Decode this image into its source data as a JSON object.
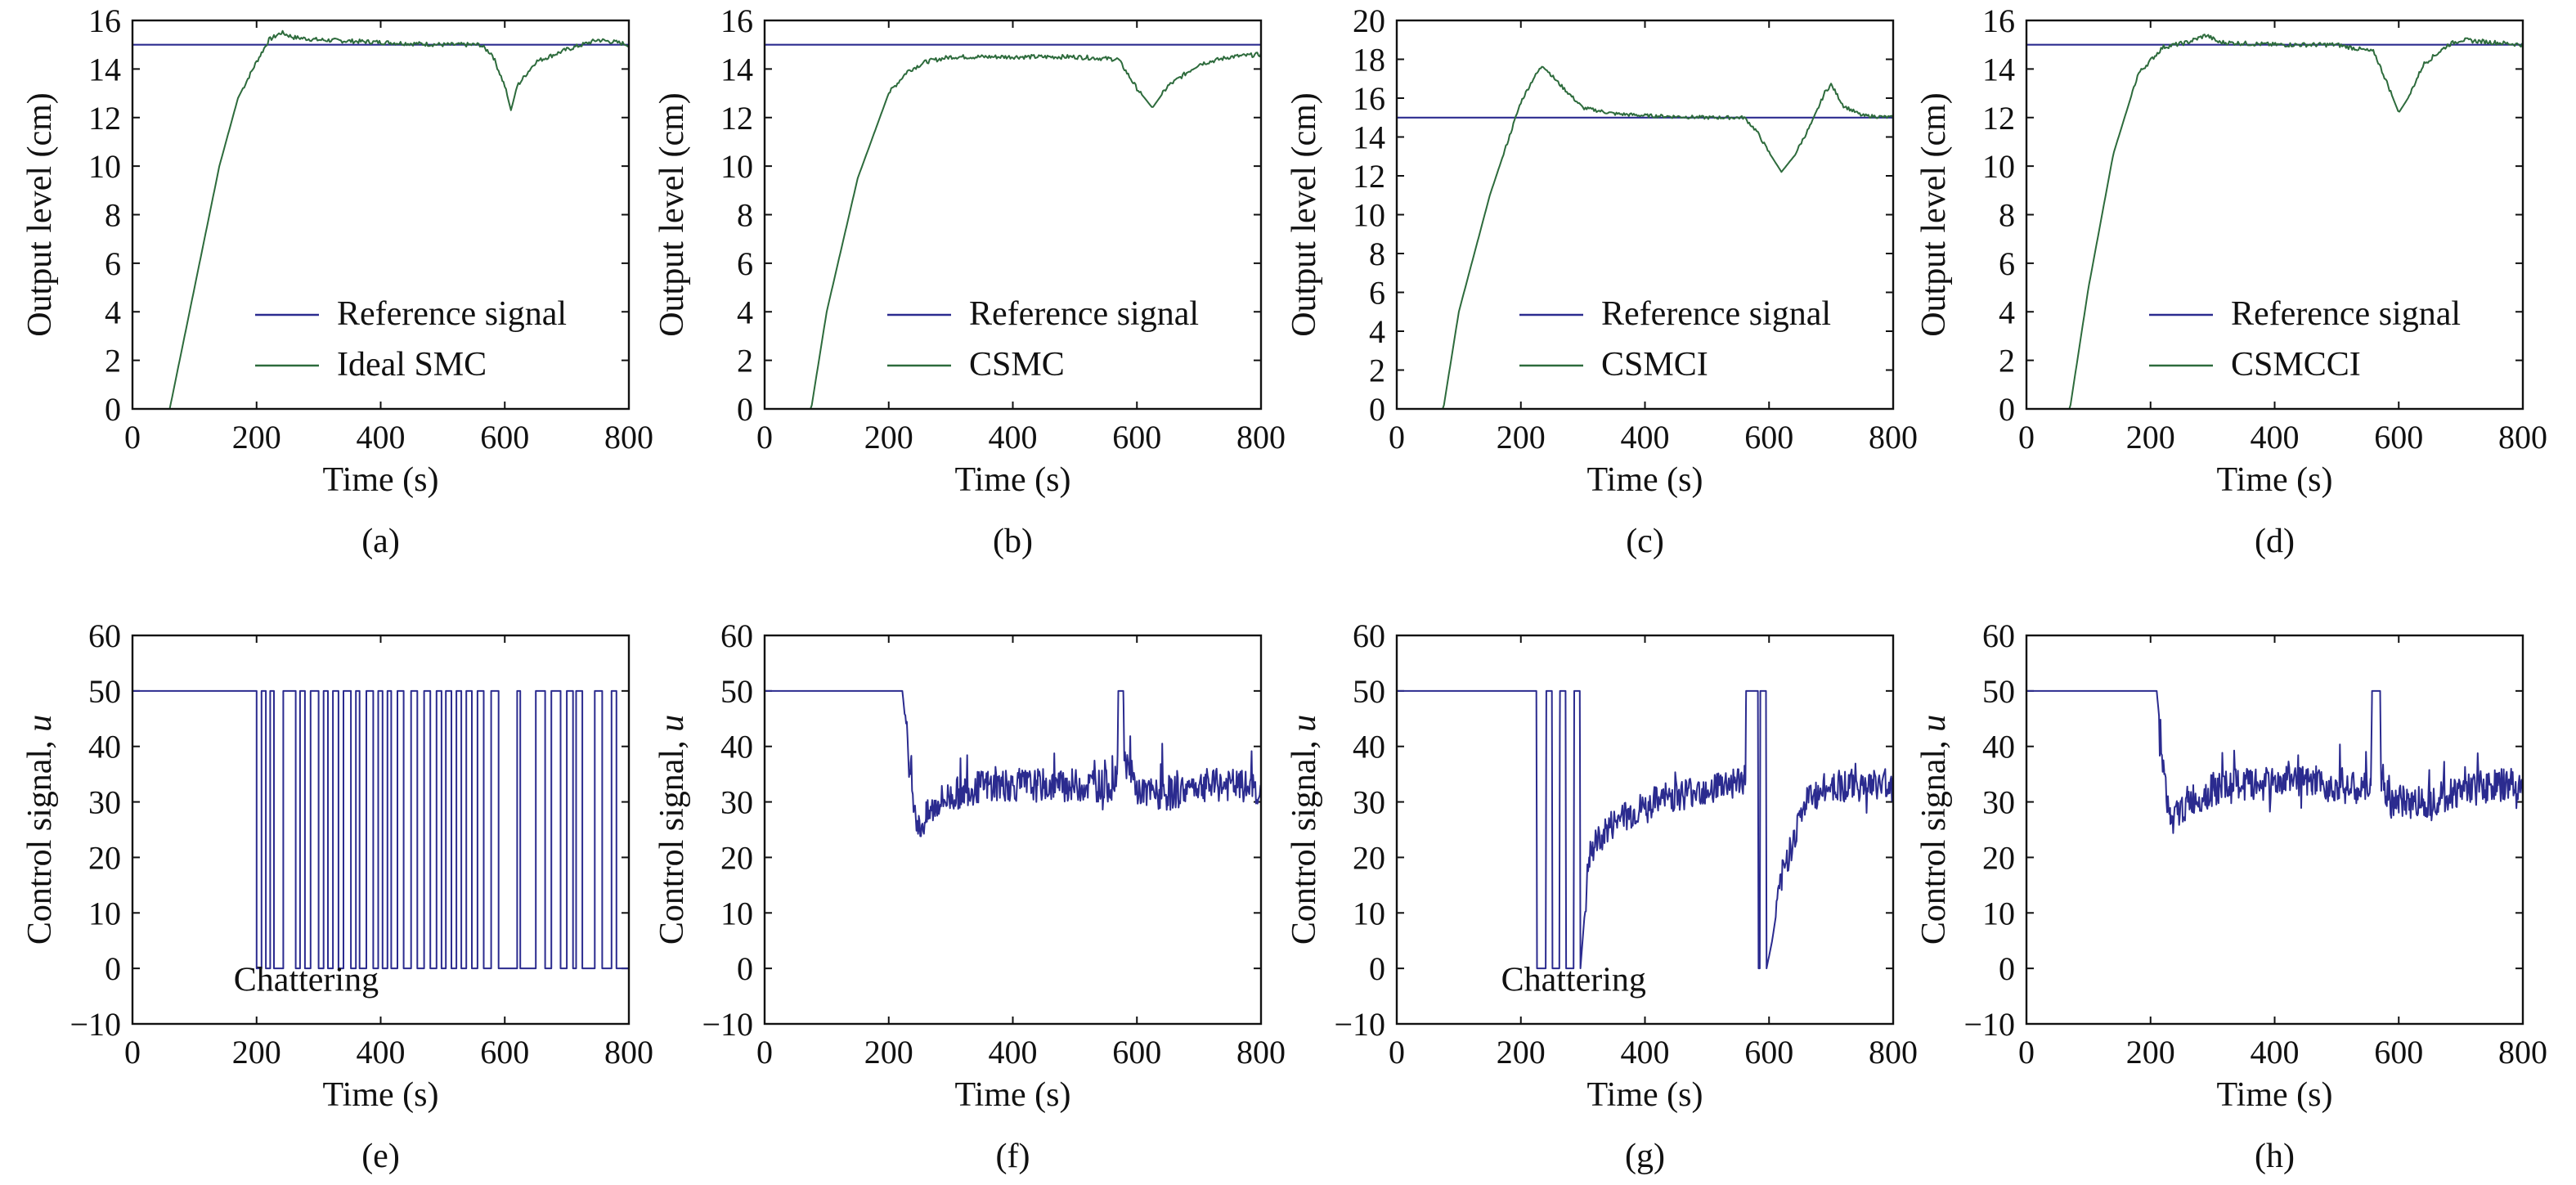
{
  "colors": {
    "reference": "#2b2b8f",
    "output": "#2d6b3c",
    "control": "#2b2b8f",
    "axis": "#111111"
  },
  "chart_data": [
    {
      "id": "a",
      "type": "line",
      "caption": "(a)",
      "xlabel": "Time (s)",
      "ylabel": "Output level (cm)",
      "xlim": [
        0,
        800
      ],
      "ylim": [
        0,
        16
      ],
      "xticks": [
        0,
        200,
        400,
        600,
        800
      ],
      "yticks": [
        0,
        2,
        4,
        6,
        8,
        10,
        12,
        14,
        16
      ],
      "legend_position": "bottom-right",
      "grid": false,
      "series": [
        {
          "name": "Reference signal",
          "role": "reference",
          "x": [
            0,
            800
          ],
          "y": [
            15,
            15
          ]
        },
        {
          "name": "Ideal SMC",
          "role": "output",
          "x": [
            30,
            60,
            100,
            140,
            170,
            200,
            220,
            240,
            260,
            300,
            400,
            500,
            560,
            580,
            600,
            610,
            620,
            650,
            700,
            750,
            780,
            800
          ],
          "y": [
            0,
            0,
            5,
            10,
            12.8,
            14.3,
            15.2,
            15.5,
            15.3,
            15.2,
            15.1,
            15.0,
            15.0,
            14.6,
            13.3,
            12.3,
            13.3,
            14.3,
            14.8,
            15.2,
            15.1,
            15.0
          ]
        }
      ]
    },
    {
      "id": "b",
      "type": "line",
      "caption": "(b)",
      "xlabel": "Time (s)",
      "ylabel": "Output level (cm)",
      "xlim": [
        0,
        800
      ],
      "ylim": [
        0,
        16
      ],
      "xticks": [
        0,
        200,
        400,
        600,
        800
      ],
      "yticks": [
        0,
        2,
        4,
        6,
        8,
        10,
        12,
        14,
        16
      ],
      "legend_position": "bottom-right",
      "grid": false,
      "series": [
        {
          "name": "Reference signal",
          "role": "reference",
          "x": [
            0,
            800
          ],
          "y": [
            15,
            15
          ]
        },
        {
          "name": "CSMC",
          "role": "output",
          "x": [
            50,
            75,
            100,
            150,
            200,
            230,
            260,
            300,
            400,
            500,
            570,
            600,
            625,
            650,
            700,
            750,
            800
          ],
          "y": [
            0,
            0,
            4,
            9.5,
            13,
            13.9,
            14.3,
            14.5,
            14.5,
            14.5,
            14.4,
            13.2,
            12.4,
            13.3,
            14.2,
            14.5,
            14.6
          ]
        }
      ]
    },
    {
      "id": "c",
      "type": "line",
      "caption": "(c)",
      "xlabel": "Time (s)",
      "ylabel": "Output level (cm)",
      "xlim": [
        0,
        800
      ],
      "ylim": [
        0,
        20
      ],
      "xticks": [
        0,
        200,
        400,
        600,
        800
      ],
      "yticks": [
        0,
        2,
        4,
        6,
        8,
        10,
        12,
        14,
        16,
        18,
        20
      ],
      "legend_position": "bottom-right",
      "grid": false,
      "series": [
        {
          "name": "Reference signal",
          "role": "reference",
          "x": [
            0,
            800
          ],
          "y": [
            15,
            15
          ]
        },
        {
          "name": "CSMCI",
          "role": "output",
          "x": [
            50,
            75,
            100,
            150,
            200,
            220,
            235,
            260,
            300,
            350,
            400,
            500,
            560,
            580,
            600,
            620,
            640,
            670,
            690,
            700,
            720,
            750,
            800
          ],
          "y": [
            0,
            0,
            5,
            11,
            15.8,
            17,
            17.7,
            16.8,
            15.5,
            15.2,
            15.1,
            15.0,
            15.0,
            14.3,
            13.2,
            12.2,
            13.0,
            14.8,
            16.3,
            16.7,
            15.6,
            15.1,
            15.0
          ]
        }
      ]
    },
    {
      "id": "d",
      "type": "line",
      "caption": "(d)",
      "xlabel": "Time (s)",
      "ylabel": "Output level (cm)",
      "xlim": [
        0,
        800
      ],
      "ylim": [
        0,
        16
      ],
      "xticks": [
        0,
        200,
        400,
        600,
        800
      ],
      "yticks": [
        0,
        2,
        4,
        6,
        8,
        10,
        12,
        14,
        16
      ],
      "legend_position": "bottom-right",
      "grid": false,
      "series": [
        {
          "name": "Reference signal",
          "role": "reference",
          "x": [
            0,
            800
          ],
          "y": [
            15,
            15
          ]
        },
        {
          "name": "CSMCCI",
          "role": "output",
          "x": [
            45,
            70,
            100,
            140,
            180,
            220,
            260,
            290,
            310,
            400,
            500,
            560,
            580,
            600,
            615,
            640,
            680,
            700,
            750,
            800
          ],
          "y": [
            0,
            0,
            5,
            10.5,
            13.8,
            14.9,
            15.1,
            15.4,
            15.1,
            15.0,
            15.0,
            14.7,
            13.5,
            12.2,
            12.8,
            14.2,
            15.0,
            15.2,
            15.1,
            15.0
          ]
        }
      ]
    },
    {
      "id": "e",
      "type": "line",
      "caption": "(e)",
      "xlabel": "Time (s)",
      "ylabel": "Control signal, ",
      "ylabel_italic": "u",
      "xlim": [
        0,
        800
      ],
      "ylim": [
        -10,
        60
      ],
      "xticks": [
        0,
        200,
        400,
        600,
        800
      ],
      "yticks": [
        -10,
        0,
        10,
        20,
        30,
        40,
        50,
        60
      ],
      "annotation": {
        "text": "Chattering",
        "x": 280,
        "y": -4
      },
      "grid": false,
      "series": [
        {
          "name": "",
          "role": "control",
          "style": "switching",
          "high": 50,
          "low": 0,
          "switch_times": [
            0,
            200,
            208,
            215,
            222,
            228,
            243,
            263,
            270,
            278,
            287,
            300,
            308,
            315,
            323,
            332,
            340,
            352,
            360,
            366,
            377,
            388,
            396,
            403,
            411,
            417,
            427,
            437,
            449,
            459,
            470,
            480,
            490,
            498,
            505,
            514,
            522,
            530,
            538,
            547,
            556,
            566,
            578,
            590,
            620,
            625,
            650,
            665,
            675,
            690,
            700,
            710,
            715,
            725,
            745,
            757,
            772,
            780,
            800
          ]
        }
      ]
    },
    {
      "id": "f",
      "type": "line",
      "caption": "(f)",
      "xlabel": "Time (s)",
      "ylabel": "Control signal, ",
      "ylabel_italic": "u",
      "xlim": [
        0,
        800
      ],
      "ylim": [
        -10,
        60
      ],
      "xticks": [
        0,
        200,
        400,
        600,
        800
      ],
      "yticks": [
        -10,
        0,
        10,
        20,
        30,
        40,
        50,
        60
      ],
      "grid": false,
      "series": [
        {
          "name": "",
          "role": "control",
          "style": "noisy",
          "x": [
            0,
            222,
            235,
            248,
            260,
            280,
            320,
            360,
            400,
            440,
            480,
            520,
            560,
            568,
            570,
            578,
            580,
            600,
            640,
            700,
            760,
            800
          ],
          "y": [
            50,
            50,
            35,
            25,
            27,
            30,
            32,
            33,
            33,
            33,
            33,
            33,
            33,
            35,
            50,
            50,
            38,
            32,
            31,
            33,
            33,
            32
          ]
        }
      ]
    },
    {
      "id": "g",
      "type": "line",
      "caption": "(g)",
      "xlabel": "Time (s)",
      "ylabel": "Control signal, ",
      "ylabel_italic": "u",
      "xlim": [
        0,
        800
      ],
      "ylim": [
        -10,
        60
      ],
      "xticks": [
        0,
        200,
        400,
        600,
        800
      ],
      "yticks": [
        -10,
        0,
        10,
        20,
        30,
        40,
        50,
        60
      ],
      "annotation": {
        "text": "Chattering",
        "x": 285,
        "y": -4
      },
      "grid": false,
      "series": [
        {
          "name": "",
          "role": "control",
          "style": "noisy",
          "x": [
            0,
            225,
            226,
            240,
            241,
            250,
            251,
            262,
            263,
            272,
            273,
            285,
            286,
            295,
            296,
            310,
            330,
            360,
            400,
            440,
            480,
            520,
            560,
            562,
            563,
            582,
            583,
            585,
            586,
            595,
            596,
            605,
            620,
            640,
            660,
            700,
            750,
            800
          ],
          "y": [
            50,
            50,
            0,
            0,
            50,
            50,
            0,
            0,
            50,
            50,
            0,
            0,
            50,
            50,
            0,
            20,
            24,
            27,
            29,
            31,
            32,
            33,
            34,
            34,
            50,
            50,
            0,
            0,
            50,
            50,
            0,
            5,
            16,
            24,
            30,
            33,
            33,
            33
          ]
        }
      ]
    },
    {
      "id": "h",
      "type": "line",
      "caption": "(h)",
      "xlabel": "Time (s)",
      "ylabel": "Control signal, ",
      "ylabel_italic": "u",
      "xlim": [
        0,
        800
      ],
      "ylim": [
        -10,
        60
      ],
      "xticks": [
        0,
        200,
        400,
        600,
        800
      ],
      "yticks": [
        -10,
        0,
        10,
        20,
        30,
        40,
        50,
        60
      ],
      "grid": false,
      "series": [
        {
          "name": "",
          "role": "control",
          "style": "noisy",
          "x": [
            0,
            210,
            222,
            232,
            260,
            300,
            340,
            380,
            420,
            460,
            500,
            540,
            555,
            557,
            570,
            572,
            580,
            600,
            640,
            700,
            760,
            800
          ],
          "y": [
            50,
            50,
            35,
            26,
            30,
            32,
            33,
            33,
            34,
            33,
            33,
            32,
            33,
            50,
            50,
            32,
            31,
            30,
            30,
            32,
            33,
            33
          ]
        }
      ]
    }
  ]
}
